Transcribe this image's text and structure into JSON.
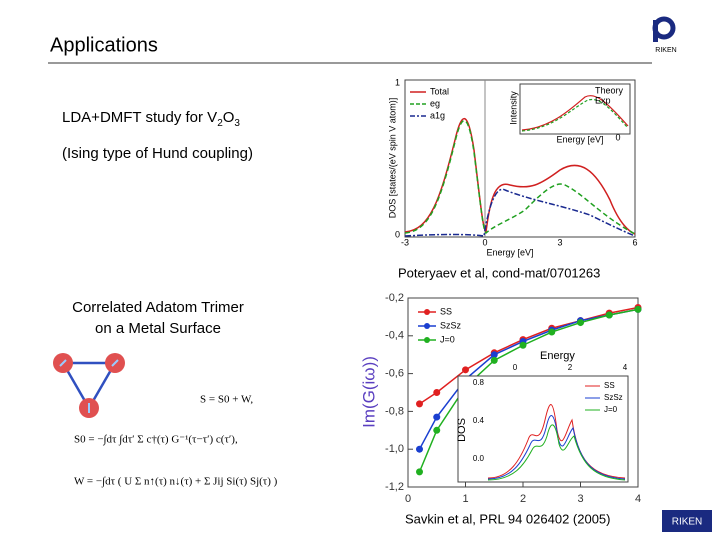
{
  "header": {
    "title": "Applications",
    "logo": "RIKEN"
  },
  "section1": {
    "line1": [
      "LDA+DMFT study for V",
      "2",
      "O",
      "3"
    ],
    "line2": "(Ising type of Hund coupling)",
    "caption": "Poteryaev et al, cond-mat/0701263"
  },
  "plot1": {
    "ylabel": "DOS [states/(eV spin V atom)]",
    "xlabel": "Energy [eV]",
    "xticks": [
      "-3",
      "0",
      "3",
      "6"
    ],
    "yticks": [
      "1",
      "0"
    ],
    "legend": [
      "Total",
      "eg",
      "a1g"
    ],
    "inset": {
      "ylabel": "Intensity",
      "xlabel": "Energy [eV]",
      "xtick": "0",
      "legend": [
        "Theory",
        "Exp"
      ]
    }
  },
  "section2": {
    "title": [
      "Correlated Adatom Trimer",
      "on a Metal Surface"
    ],
    "equations": [
      "S = S0 + W,",
      "S0 = −∫dτ ∫dτ′ Σ c†(τ) G⁻¹(τ−τ′) c(τ′),",
      "W = −∫dτ ( U Σ n↑(τ) n↓(τ) + Σ Jij Si(τ) Sj(τ) )"
    ],
    "caption": "Savkin et al, PRL 94 026402 (2005)"
  },
  "plot2": {
    "type": "line",
    "ylabel": "Im(G(iω))",
    "x": [
      0.2,
      0.5,
      1,
      1.5,
      2,
      2.5,
      3,
      3.5,
      4
    ],
    "series": [
      {
        "name": "SS",
        "color": "#e02020",
        "values": [
          -0.76,
          -0.7,
          -0.58,
          -0.49,
          -0.42,
          -0.36,
          -0.32,
          -0.28,
          -0.25
        ]
      },
      {
        "name": "SzSz",
        "color": "#1a3fd0",
        "values": [
          -1.0,
          -0.83,
          -0.63,
          -0.5,
          -0.43,
          -0.37,
          -0.32,
          -0.29,
          -0.26
        ]
      },
      {
        "name": "J=0",
        "color": "#20b020",
        "values": [
          -1.12,
          -0.9,
          -0.67,
          -0.53,
          -0.45,
          -0.38,
          -0.33,
          -0.29,
          -0.26
        ]
      }
    ],
    "xlim": [
      0,
      4
    ],
    "ylim": [
      -1.2,
      -0.2
    ],
    "xticks": [
      0,
      1,
      2,
      3,
      4
    ],
    "yticks": [
      {
        "value": -0.2,
        "label": "-0,2"
      },
      {
        "value": -0.4,
        "label": "-0,4"
      },
      {
        "value": -0.6,
        "label": "-0,6"
      },
      {
        "value": -0.8,
        "label": "-0,8"
      },
      {
        "value": -1.0,
        "label": "-1,0"
      },
      {
        "value": -1.2,
        "label": "-1,2"
      }
    ],
    "inset": {
      "label": "Energy",
      "ylabel": "DOS",
      "xticks": [
        "0",
        "2",
        "4"
      ],
      "yticks": [
        "0.8",
        "0.4",
        "0.0"
      ],
      "legend": [
        "SS",
        "SzSz",
        "J=0"
      ]
    }
  }
}
